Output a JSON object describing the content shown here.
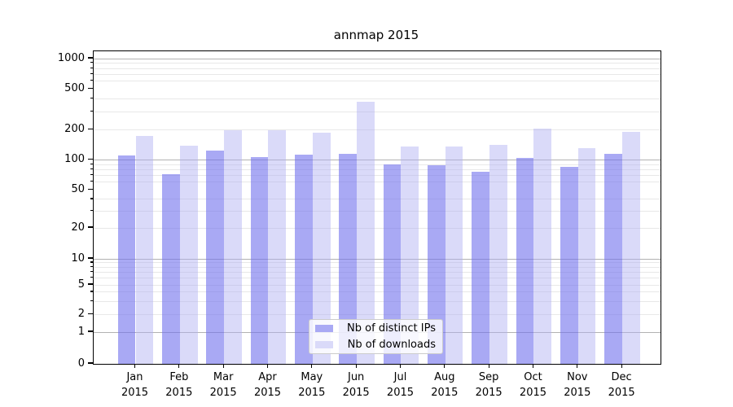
{
  "title": "annmap 2015",
  "chart_data": {
    "type": "bar",
    "title": "annmap 2015",
    "categories": [
      "Jan 2015",
      "Feb 2015",
      "Mar 2015",
      "Apr 2015",
      "May 2015",
      "Jun 2015",
      "Jul 2015",
      "Aug 2015",
      "Sep 2015",
      "Oct 2015",
      "Nov 2015",
      "Dec 2015"
    ],
    "series": [
      {
        "name": "Nb of distinct IPs",
        "color": "#a9a9f4",
        "bar_fill": "rgba(112,112,237,0.6)",
        "values": [
          110,
          72,
          123,
          106,
          113,
          116,
          91,
          88,
          76,
          105,
          85,
          116
        ]
      },
      {
        "name": "Nb of downloads",
        "color": "#dadaf9",
        "bar_fill": "rgba(173,173,242,0.45)",
        "values": [
          174,
          139,
          200,
          199,
          186,
          378,
          136,
          136,
          142,
          205,
          131,
          191
        ]
      }
    ],
    "xlabel": "",
    "ylabel": "",
    "yscale": "symlog",
    "ylim": [
      0,
      1000
    ],
    "y_ticks": [
      0,
      1,
      2,
      5,
      10,
      20,
      50,
      100,
      200,
      500,
      1000
    ],
    "y_major_grid": [
      1,
      10,
      100,
      1000
    ],
    "y_minor_grid": [
      2,
      3,
      4,
      5,
      6,
      7,
      8,
      9,
      20,
      30,
      40,
      60,
      70,
      80,
      90,
      200,
      300,
      400,
      600,
      700,
      800,
      900
    ],
    "grid": true,
    "legend_position": "lower center"
  }
}
